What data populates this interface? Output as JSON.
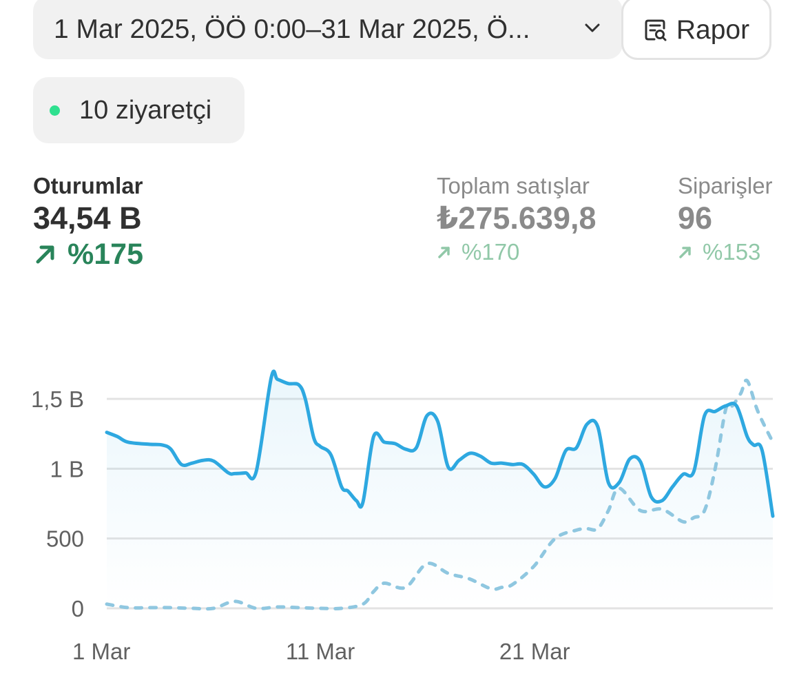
{
  "date_range": {
    "label": "1 Mar 2025, ÖÖ 0:00–31 Mar 2025, Ö..."
  },
  "report_button": {
    "label": "Rapor",
    "icon": "report-search-icon"
  },
  "visitors": {
    "label": "10 ziyaretçi",
    "dot_color": "#2fe08f"
  },
  "metrics": [
    {
      "label": "Oturumlar",
      "value": "34,54 B",
      "change": "%175",
      "selected": true
    },
    {
      "label": "Toplam satışlar",
      "value": "₺275.639,8",
      "change": "%170",
      "selected": false
    },
    {
      "label": "Siparişler",
      "value": "96",
      "change": "%153",
      "selected": false
    }
  ],
  "chart_data": {
    "type": "line",
    "y_tick_labels": [
      "0",
      "500",
      "1 B",
      "1,5 B"
    ],
    "y_tick_values": [
      0,
      500,
      1000,
      1500
    ],
    "ylim": [
      0,
      1500
    ],
    "x_tick_labels": [
      "1 Mar",
      "11 Mar",
      "21 Mar"
    ],
    "x_tick_days": [
      1,
      11,
      21
    ],
    "xlim": [
      1,
      32.2
    ],
    "grid": true,
    "colors": {
      "current": "#2ea8e0",
      "previous": "#8fc7e0"
    },
    "series": [
      {
        "style": "solid",
        "x": [
          1,
          1.5,
          2,
          3,
          3.6,
          4,
          4.5,
          5,
          5.5,
          6,
          6.7,
          7,
          7.5,
          8,
          8.7,
          9,
          9.5,
          10,
          10.3,
          10.7,
          11,
          11.5,
          12,
          12.3,
          12.7,
          13,
          13.5,
          14,
          14.5,
          15,
          15.5,
          16,
          16.5,
          17,
          17.5,
          18,
          18.5,
          19,
          19.5,
          20,
          20.5,
          21,
          21.5,
          22,
          22.5,
          23,
          23.5,
          24,
          24.5,
          25,
          25.5,
          26,
          26.5,
          27,
          27.5,
          28,
          28.5,
          29,
          29.5,
          30,
          30.5,
          31,
          31.3,
          31.7,
          32.2
        ],
        "y": [
          1260,
          1230,
          1190,
          1175,
          1170,
          1140,
          1030,
          1040,
          1060,
          1055,
          970,
          965,
          970,
          980,
          1650,
          1640,
          1610,
          1600,
          1500,
          1220,
          1160,
          1100,
          870,
          840,
          770,
          760,
          1230,
          1190,
          1180,
          1140,
          1150,
          1380,
          1340,
          1010,
          1060,
          1110,
          1090,
          1040,
          1040,
          1030,
          1030,
          960,
          870,
          930,
          1130,
          1150,
          1320,
          1300,
          900,
          900,
          1070,
          1050,
          800,
          770,
          870,
          960,
          980,
          1380,
          1410,
          1450,
          1450,
          1230,
          1170,
          1130,
          660
        ]
      },
      {
        "style": "dashed",
        "x": [
          1,
          2,
          3,
          4,
          5,
          6,
          7,
          8,
          9,
          10,
          11,
          12,
          13,
          13.5,
          14,
          15,
          16,
          17,
          18,
          19,
          19.5,
          20,
          21,
          22,
          23,
          23.5,
          24,
          24.5,
          25,
          26,
          27,
          28,
          28.5,
          29,
          29.5,
          30,
          30.3,
          30.7,
          31,
          31.5,
          32.2
        ],
        "y": [
          30,
          5,
          5,
          5,
          0,
          0,
          50,
          0,
          10,
          5,
          0,
          0,
          30,
          120,
          180,
          150,
          320,
          250,
          210,
          140,
          150,
          170,
          300,
          500,
          560,
          570,
          570,
          700,
          860,
          700,
          710,
          620,
          650,
          700,
          1000,
          1430,
          1450,
          1540,
          1630,
          1410,
          1190
        ]
      }
    ]
  }
}
